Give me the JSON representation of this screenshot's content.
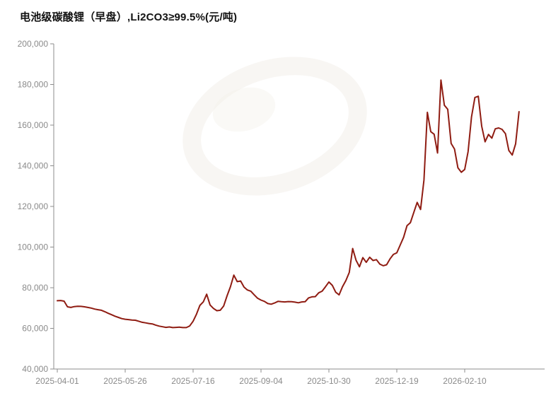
{
  "title": "电池级碳酸锂（早盘）,Li2CO3≥99.5%(元/吨)",
  "colors": {
    "line": "#8f1c12",
    "axis": "#8c8c8c",
    "tick_label": "#8a8a8a",
    "title": "#121212",
    "background": "#ffffff"
  },
  "chart_data": {
    "type": "line",
    "title": "电池级碳酸锂（早盘）,Li2CO3≥99.5%(元/吨)",
    "xlabel": "",
    "ylabel": "",
    "unit": "元/吨",
    "ylim": [
      40000,
      200000
    ],
    "y_tick_step": 20000,
    "y_tick_labels": [
      "200,000",
      "180,000",
      "160,000",
      "140,000",
      "120,000",
      "100,000",
      "80,000",
      "60,000",
      "40,000"
    ],
    "x_tick_labels": [
      "2025-04-01",
      "2025-05-26",
      "2025-07-16",
      "2025-09-04",
      "2025-10-30",
      "2025-12-19",
      "2026-02-10"
    ],
    "x_tick_point_indices": [
      0,
      20,
      40,
      60,
      80,
      100,
      120
    ],
    "grid": false,
    "legend": "none",
    "series": [
      {
        "name": "电池级碳酸锂（早盘）",
        "values": [
          73600,
          73700,
          73400,
          70600,
          70300,
          70700,
          70900,
          70800,
          70600,
          70300,
          70000,
          69500,
          69200,
          68900,
          68200,
          67400,
          66700,
          66000,
          65400,
          64800,
          64500,
          64300,
          64100,
          64000,
          63500,
          63000,
          62700,
          62400,
          62200,
          61600,
          61100,
          60800,
          60500,
          60700,
          60400,
          60500,
          60600,
          60400,
          60400,
          61200,
          63500,
          67000,
          71300,
          73000,
          76800,
          71500,
          69800,
          68700,
          68900,
          71000,
          76000,
          80500,
          86200,
          83000,
          83300,
          80300,
          78900,
          78300,
          76500,
          74800,
          73900,
          73300,
          72200,
          71900,
          72500,
          73300,
          73100,
          73000,
          73200,
          73100,
          72900,
          72600,
          73000,
          73100,
          75000,
          75500,
          75600,
          77500,
          78300,
          80500,
          82800,
          81200,
          77800,
          76500,
          80500,
          83500,
          87500,
          99300,
          93500,
          90300,
          94800,
          92500,
          95000,
          93400,
          93800,
          91600,
          90800,
          91300,
          94200,
          96400,
          97200,
          101000,
          104800,
          110500,
          112000,
          117000,
          122000,
          118500,
          133000,
          166300,
          156800,
          155500,
          146300,
          182200,
          169800,
          167800,
          151000,
          148200,
          139000,
          136800,
          138200,
          147000,
          164000,
          173600,
          174200,
          159500,
          151800,
          155400,
          153600,
          158200,
          158600,
          157900,
          155800,
          147500,
          145300,
          150800,
          166600
        ]
      }
    ]
  }
}
